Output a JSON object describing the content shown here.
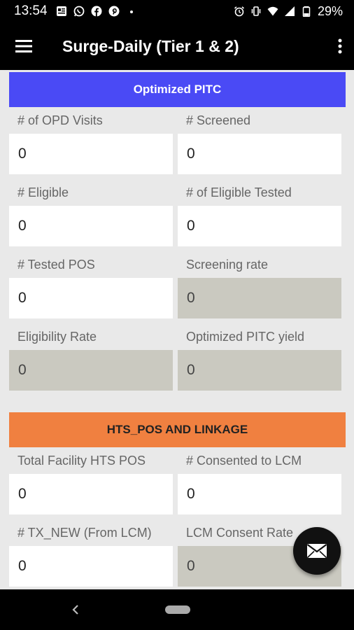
{
  "status": {
    "time": "13:54",
    "battery": "29%"
  },
  "appbar": {
    "title": "Surge-Daily (Tier 1 & 2)"
  },
  "sections": {
    "pitc": {
      "title": "Optimized PITC",
      "color": "#4a4af5",
      "fields": [
        {
          "label": "# of OPD Visits",
          "value": "0"
        },
        {
          "label": "# Screened",
          "value": "0"
        },
        {
          "label": "# Eligible",
          "value": "0"
        },
        {
          "label": "# of Eligible Tested",
          "value": "0"
        },
        {
          "label": "# Tested POS",
          "value": "0"
        },
        {
          "label": "Screening rate",
          "value": "0"
        },
        {
          "label": "Eligibility Rate",
          "value": "0"
        },
        {
          "label": "Optimized PITC yield",
          "value": "0"
        }
      ]
    },
    "hts": {
      "title": "HTS_POS AND LINKAGE",
      "color": "#f08040",
      "fields": [
        {
          "label": "Total Facility HTS POS",
          "value": "0"
        },
        {
          "label": "# Consented to LCM",
          "value": "0"
        },
        {
          "label": "# TX_NEW (From LCM)",
          "value": "0"
        },
        {
          "label": "LCM Consent Rate",
          "value": "0"
        }
      ]
    }
  },
  "icons": {
    "menu": "hamburger-menu-icon",
    "more": "more-vert-icon",
    "fab": "mail-icon"
  }
}
